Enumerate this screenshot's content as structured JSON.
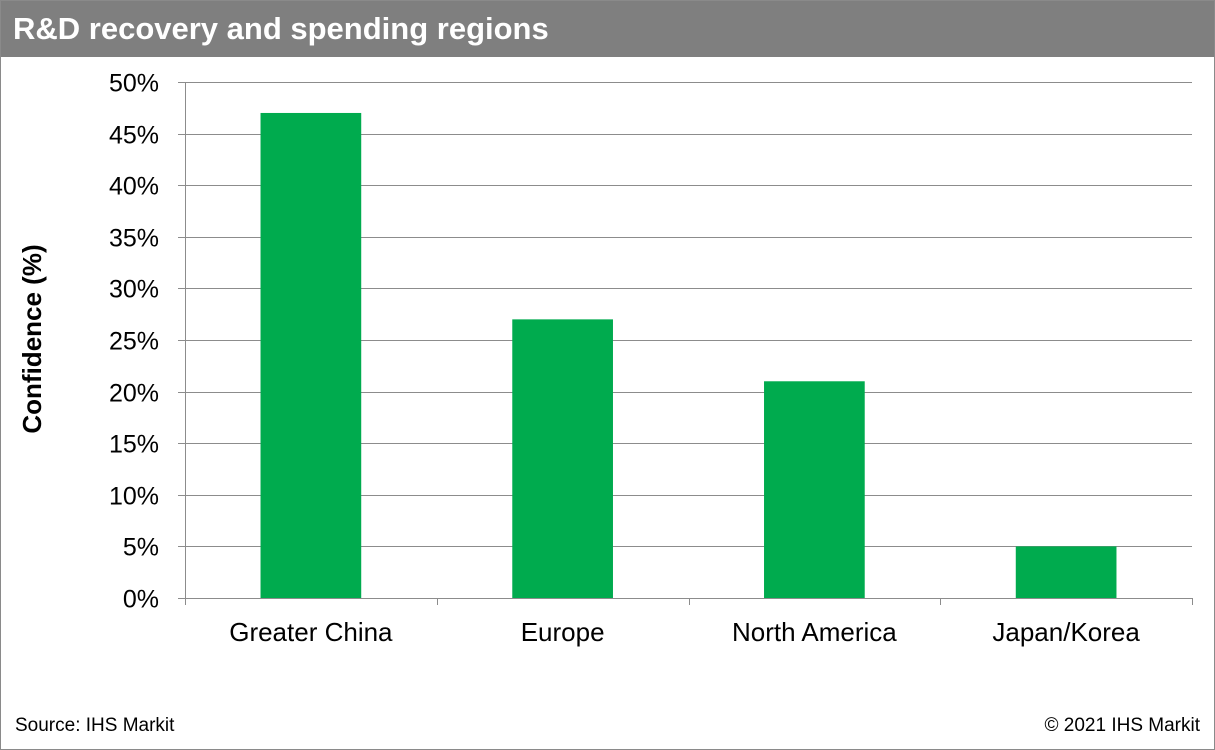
{
  "header": {
    "title": "R&D recovery and spending regions"
  },
  "footer": {
    "source": "Source: IHS Markit",
    "copyright": "© 2021 IHS Markit"
  },
  "chart_data": {
    "type": "bar",
    "title": "R&D recovery and spending regions",
    "xlabel": "",
    "ylabel": "Confidence (%)",
    "categories": [
      "Greater China",
      "Europe",
      "North America",
      "Japan/Korea"
    ],
    "values": [
      47,
      27,
      21,
      5
    ],
    "ylim": [
      0,
      50
    ],
    "yticks": [
      0,
      5,
      10,
      15,
      20,
      25,
      30,
      35,
      40,
      45,
      50
    ],
    "ytick_labels": [
      "0%",
      "5%",
      "10%",
      "15%",
      "20%",
      "25%",
      "30%",
      "35%",
      "40%",
      "45%",
      "50%"
    ],
    "grid": true,
    "legend": "none",
    "bar_color": "#00AB4E",
    "grid_color": "#8c8c8c",
    "title_bar_color": "#7f7f7f"
  }
}
